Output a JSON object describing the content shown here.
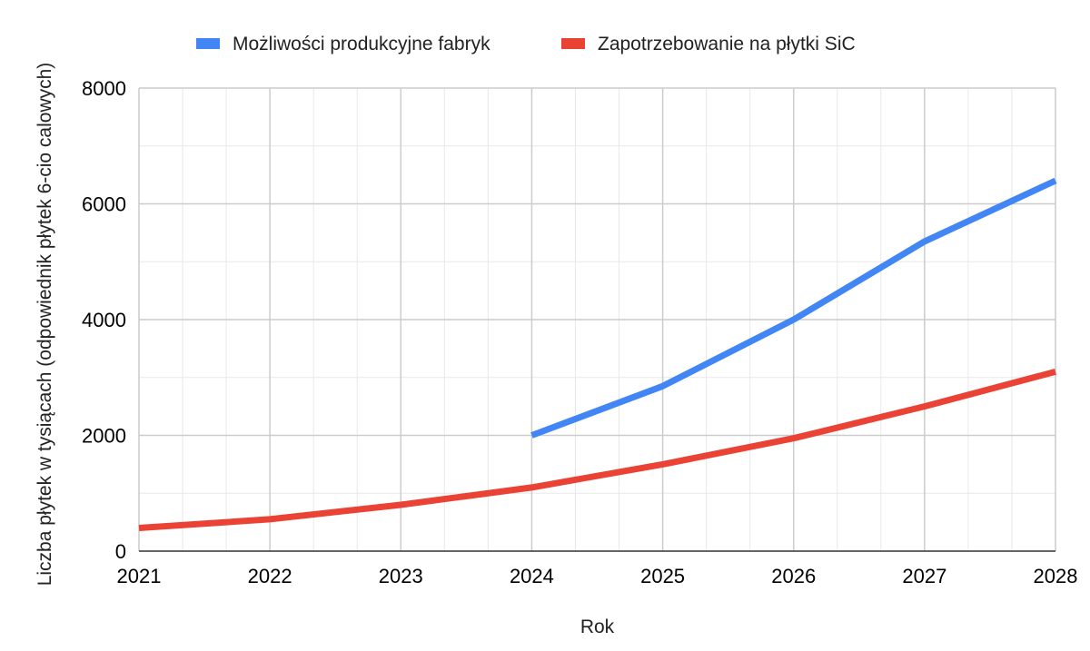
{
  "chart_data": {
    "type": "line",
    "x": [
      2021,
      2022,
      2023,
      2024,
      2025,
      2026,
      2027,
      2028
    ],
    "series": [
      {
        "name": "Możliwości produkcyjne fabryk",
        "color": "#4285f4",
        "values": [
          null,
          null,
          null,
          2000,
          2850,
          4000,
          5350,
          6400
        ]
      },
      {
        "name": "Zapotrzebowanie na płytki SiC",
        "color": "#ea4335",
        "values": [
          400,
          550,
          800,
          1100,
          1500,
          1950,
          2500,
          3100
        ]
      }
    ],
    "xlabel": "Rok",
    "ylabel": "Liczba płytek w tysiącach (odpowiednik płytek 6-cio calowych)",
    "xlim": [
      2021,
      2028
    ],
    "ylim": [
      0,
      8000
    ],
    "yticks": [
      "0",
      "2000",
      "4000",
      "6000",
      "8000"
    ],
    "xticks": [
      "2021",
      "2022",
      "2023",
      "2024",
      "2025",
      "2026",
      "2027",
      "2028"
    ],
    "grid": true,
    "minor_gridlines": true,
    "legend_position": "top"
  }
}
